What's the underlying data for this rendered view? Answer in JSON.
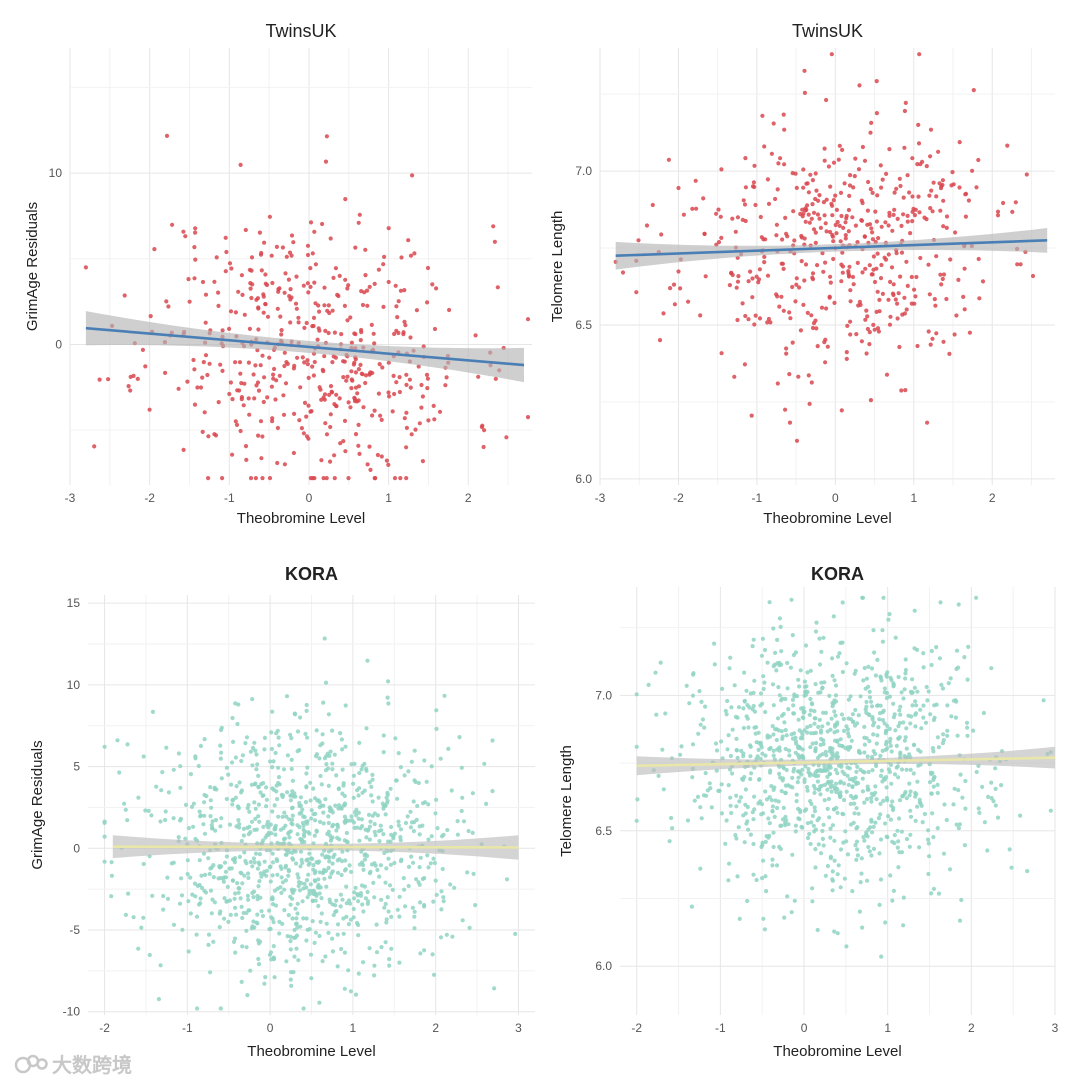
{
  "chart_data": [
    {
      "id": "twins-grimage",
      "type": "scatter",
      "title": "TwinsUK",
      "xlabel": "Theobromine Level",
      "ylabel": "GrimAge Residuals",
      "xlim": [
        -3.0,
        2.8
      ],
      "ylim": [
        -8.2,
        17.3
      ],
      "xticks": [
        -3,
        -2,
        -1,
        0,
        1,
        2
      ],
      "yticks": [
        0,
        10
      ],
      "point_color": "#d9474f",
      "line_color": "#4a7fb5",
      "ci_color": "#b5b5b5",
      "n_points": 520,
      "point_cloud": {
        "x_mean": 0.0,
        "x_sd": 1.0,
        "y_sd": 4.0,
        "seed": 11,
        "y_clip": [
          -7.8,
          16.2
        ]
      },
      "fit": {
        "x": [
          -2.8,
          2.7
        ],
        "y": [
          0.95,
          -1.2
        ],
        "ci_half_start": 1.0,
        "ci_half_mid": 0.35,
        "ci_half_end": 1.0
      }
    },
    {
      "id": "twins-telomere",
      "type": "scatter",
      "title": "TwinsUK",
      "xlabel": "Theobromine Level",
      "ylabel": "Telomere Length",
      "xlim": [
        -3.0,
        2.8
      ],
      "ylim": [
        5.98,
        7.4
      ],
      "xticks": [
        -3,
        -2,
        -1,
        0,
        1,
        2
      ],
      "yticks": [
        6.0,
        6.5,
        7.0
      ],
      "point_color": "#d9474f",
      "line_color": "#4a7fb5",
      "ci_color": "#b5b5b5",
      "n_points": 520,
      "point_cloud": {
        "x_mean": 0.0,
        "x_sd": 1.0,
        "y_sd": 0.21,
        "seed": 23,
        "y_clip": [
          6.0,
          7.38
        ]
      },
      "fit": {
        "x": [
          -2.8,
          2.7
        ],
        "y": [
          6.725,
          6.775
        ],
        "ci_half_start": 0.045,
        "ci_half_mid": 0.012,
        "ci_half_end": 0.04
      }
    },
    {
      "id": "kora-grimage",
      "type": "scatter",
      "title": "KORA",
      "xlabel": "Theobromine Level",
      "ylabel": "GrimAge Residuals",
      "xlim": [
        -2.2,
        3.2
      ],
      "ylim": [
        -10.2,
        15.5
      ],
      "xticks": [
        -2,
        -1,
        0,
        1,
        2,
        3
      ],
      "yticks": [
        -10,
        -5,
        0,
        5,
        10,
        15
      ],
      "point_color": "#8fd3c3",
      "line_color": "#e8e6a8",
      "ci_color": "#bdbdbd",
      "n_points": 1100,
      "point_cloud": {
        "x_mean": 0.4,
        "x_sd": 0.9,
        "y_sd": 3.8,
        "seed": 37,
        "y_clip": [
          -9.8,
          14.9
        ]
      },
      "fit": {
        "x": [
          -1.9,
          3.0
        ],
        "y": [
          0.1,
          0.05
        ],
        "ci_half_start": 0.7,
        "ci_half_mid": 0.2,
        "ci_half_end": 0.75
      }
    },
    {
      "id": "kora-telomere",
      "type": "scatter",
      "title": "KORA",
      "xlabel": "Theobromine Level",
      "ylabel": "Telomere Length",
      "xlim": [
        -2.2,
        3.0
      ],
      "ylim": [
        5.82,
        7.4
      ],
      "xticks": [
        -2,
        -1,
        0,
        1,
        2,
        3
      ],
      "yticks": [
        6.0,
        6.5,
        7.0
      ],
      "point_color": "#8fd3c3",
      "line_color": "#e8e6a8",
      "ci_color": "#bdbdbd",
      "n_points": 1100,
      "point_cloud": {
        "x_mean": 0.4,
        "x_sd": 0.9,
        "y_sd": 0.24,
        "seed": 53,
        "y_clip": [
          5.88,
          7.36
        ]
      },
      "fit": {
        "x": [
          -2.0,
          3.0
        ],
        "y": [
          6.74,
          6.77
        ],
        "ci_half_start": 0.035,
        "ci_half_mid": 0.01,
        "ci_half_end": 0.04
      }
    }
  ],
  "watermark": {
    "text": "大数跨境"
  }
}
